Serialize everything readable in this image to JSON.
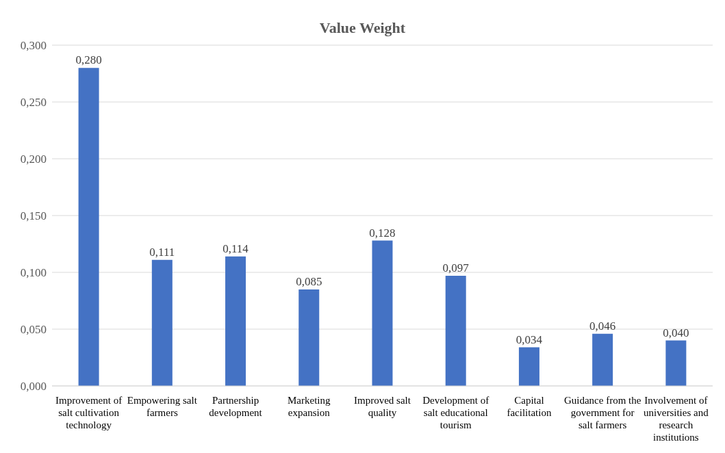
{
  "chart_data": {
    "type": "bar",
    "title": "Value Weight",
    "categories": [
      "Improvement of salt cultivation technology",
      "Empowering salt farmers",
      "Partnership development",
      "Marketing expansion",
      "Improved salt quality",
      "Development of salt educational tourism",
      "Capital facilitation",
      "Guidance from the government for salt farmers",
      "Involvement of universities and research institutions"
    ],
    "values": [
      0.28,
      0.111,
      0.114,
      0.085,
      0.128,
      0.097,
      0.034,
      0.046,
      0.04
    ],
    "value_labels": [
      "0,280",
      "0,111",
      "0,114",
      "0,085",
      "0,128",
      "0,097",
      "0,034",
      "0,046",
      "0,040"
    ],
    "color": "#4472c4",
    "ylim": [
      0,
      0.3
    ],
    "yticks": [
      {
        "value": 0,
        "label": "0,000"
      },
      {
        "value": 0.05,
        "label": "0,050"
      },
      {
        "value": 0.1,
        "label": "0,100"
      },
      {
        "value": 0.15,
        "label": "0,150"
      },
      {
        "value": 0.2,
        "label": "0,200"
      },
      {
        "value": 0.25,
        "label": "0,250"
      },
      {
        "value": 0.3,
        "label": "0,300"
      }
    ],
    "grid": "y"
  }
}
